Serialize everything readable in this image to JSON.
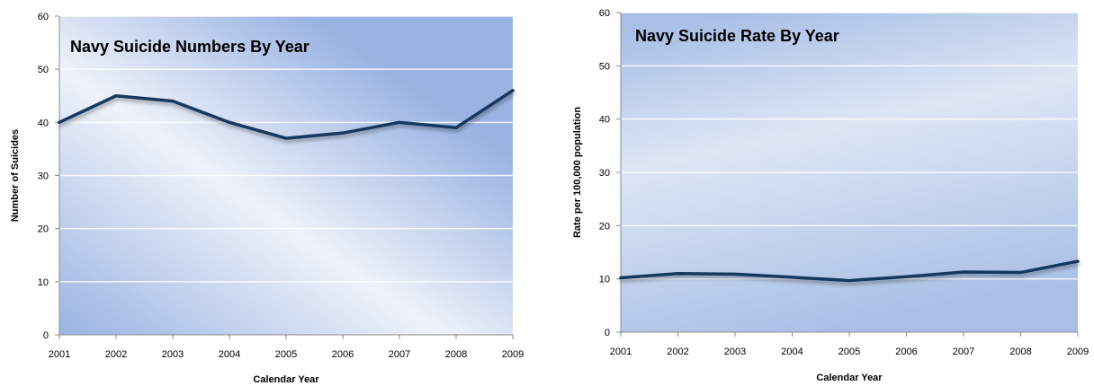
{
  "chart_data": [
    {
      "type": "line",
      "title": "Navy Suicide Numbers By Year",
      "xlabel": "Calendar Year",
      "ylabel": "Number of Suicides",
      "categories": [
        "2001",
        "2002",
        "2003",
        "2004",
        "2005",
        "2006",
        "2007",
        "2008",
        "2009"
      ],
      "series": [
        {
          "values": [
            40,
            45,
            44,
            40,
            37,
            38,
            40,
            39,
            46
          ]
        }
      ],
      "ylim": [
        0,
        60
      ],
      "yticks": [
        "0",
        "10",
        "20",
        "30",
        "40",
        "50",
        "60"
      ],
      "grid": true,
      "colors": {
        "line": "#17375e",
        "plot_light": "#eef2fa",
        "plot_dark": "#9ab3e2",
        "grid": "#ffffff"
      }
    },
    {
      "type": "line",
      "title": "Navy Suicide Rate By Year",
      "xlabel": "Calendar Year",
      "ylabel": "Rate per 100,000 population",
      "categories": [
        "2001",
        "2002",
        "2003",
        "2004",
        "2005",
        "2006",
        "2007",
        "2008",
        "2009"
      ],
      "series": [
        {
          "values": [
            10.2,
            11.0,
            10.9,
            10.3,
            9.7,
            10.4,
            11.3,
            11.2,
            13.3
          ]
        }
      ],
      "ylim": [
        0,
        60
      ],
      "yticks": [
        "0",
        "10",
        "20",
        "30",
        "40",
        "50",
        "60"
      ],
      "grid": true,
      "colors": {
        "line": "#17375e",
        "plot_light": "#dde6f5",
        "plot_dark": "#a9bfe6",
        "grid": "#ffffff"
      }
    }
  ]
}
